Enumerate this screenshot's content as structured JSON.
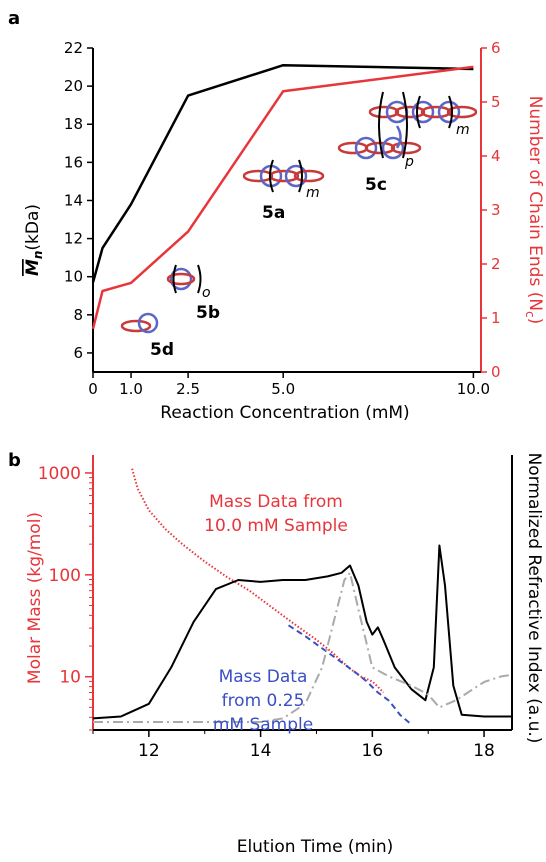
{
  "chart_data": [
    {
      "type": "line",
      "panel_label": "a",
      "xlabel": "Reaction Concentration (mM)",
      "ylabel_left": "M̅n (kDa)",
      "ylabel_left_math": "M",
      "ylabel_left_sub": "n",
      "ylabel_left_unit": "(kDa)",
      "ylabel_right": "Number of Chain Ends (N",
      "ylabel_right_sub": "c",
      "ylabel_right_close": ")",
      "xlim": [
        0,
        10.2
      ],
      "ylim_left": [
        5,
        22
      ],
      "ylim_right": [
        0,
        6
      ],
      "x_ticks": [
        0,
        1.0,
        2.5,
        5.0,
        10.0
      ],
      "x_tick_labels": [
        "0",
        "1.0",
        "2.5",
        "5.0",
        "10.0"
      ],
      "y_left_ticks": [
        6,
        8,
        10,
        12,
        14,
        16,
        18,
        20,
        22
      ],
      "y_right_ticks": [
        0,
        1,
        2,
        3,
        4,
        5,
        6
      ],
      "colors": {
        "left_axis": "#000000",
        "right_axis": "#e8353a",
        "ring_red": "#c8393a",
        "ring_blue": "#5a66c8"
      },
      "series": [
        {
          "axis": "left",
          "color": "#000000",
          "x": [
            0,
            0.25,
            1.0,
            2.5,
            5.0,
            10.0
          ],
          "y": [
            9.7,
            11.5,
            13.8,
            19.5,
            21.1,
            20.9
          ]
        },
        {
          "axis": "right",
          "color": "#e8353a",
          "x": [
            0,
            0.25,
            1.0,
            2.5,
            5.0,
            10.0
          ],
          "y": [
            0.8,
            1.5,
            1.65,
            2.6,
            5.2,
            5.65
          ]
        }
      ],
      "compounds": [
        {
          "label": "5d",
          "subscript": ""
        },
        {
          "label": "5b",
          "subscript": "o"
        },
        {
          "label": "5a",
          "subscript": "m"
        },
        {
          "label": "5c",
          "subscript": "p",
          "subscript2": "m"
        }
      ]
    },
    {
      "type": "line",
      "panel_label": "b",
      "xlabel": "Elution Time (min)",
      "ylabel_left": "Molar Mass (kg/mol)",
      "ylabel_right": "Normalized Refractive Index (a.u.)",
      "xlim": [
        11,
        18.5
      ],
      "ylim_left": [
        3,
        1500
      ],
      "y_scale_left": "log",
      "x_ticks": [
        12,
        14,
        16,
        18
      ],
      "y_left_ticks": [
        10,
        100,
        1000
      ],
      "annotations": [
        {
          "lines": [
            "Mass Data from",
            "10.0 mM Sample"
          ],
          "color": "#e8353a"
        },
        {
          "lines": [
            "Mass Data",
            "from 0.25",
            "mM Sample"
          ],
          "color": "#3b4fc4"
        }
      ],
      "series": [
        {
          "axis": "left",
          "style": "dotted",
          "color": "#e8353a",
          "x": [
            11.7,
            11.8,
            12.0,
            12.3,
            12.6,
            13.0,
            13.4,
            13.8,
            14.2,
            14.6,
            15.0,
            15.3,
            15.6,
            15.8,
            16.0,
            16.2
          ],
          "y": [
            1100,
            700,
            430,
            280,
            200,
            135,
            95,
            70,
            48,
            33,
            23,
            17,
            12,
            10,
            9,
            7
          ]
        },
        {
          "axis": "left",
          "style": "dashed",
          "color": "#3b4fc4",
          "x": [
            14.5,
            14.8,
            15.1,
            15.4,
            15.7,
            15.9,
            16.1,
            16.3,
            16.5,
            16.7
          ],
          "y": [
            32,
            25,
            19,
            14.5,
            11,
            9,
            7,
            5.8,
            4.2,
            3.4
          ]
        },
        {
          "axis": "right",
          "style": "solid",
          "color": "#000000",
          "x": [
            11.0,
            11.5,
            12.0,
            12.4,
            12.8,
            13.2,
            13.6,
            14.0,
            14.4,
            14.8,
            15.2,
            15.45,
            15.6,
            15.75,
            15.9,
            16.0,
            16.1,
            16.2,
            16.4,
            16.7,
            16.95,
            17.1,
            17.2,
            17.3,
            17.45,
            17.6,
            18.0,
            18.5
          ],
          "y": [
            0.02,
            0.03,
            0.1,
            0.3,
            0.55,
            0.73,
            0.78,
            0.77,
            0.78,
            0.78,
            0.8,
            0.82,
            0.86,
            0.75,
            0.55,
            0.48,
            0.52,
            0.45,
            0.3,
            0.18,
            0.12,
            0.3,
            0.97,
            0.75,
            0.2,
            0.04,
            0.03,
            0.03
          ]
        },
        {
          "axis": "right",
          "style": "dashdot",
          "color": "#aaaaaa",
          "x": [
            11.0,
            13.0,
            14.0,
            14.4,
            14.8,
            15.1,
            15.35,
            15.5,
            15.6,
            15.75,
            16.0,
            16.3,
            16.7,
            17.0,
            17.2,
            17.5,
            17.8,
            18.0,
            18.3,
            18.5
          ],
          "y": [
            0.0,
            0.0,
            0.0,
            0.02,
            0.1,
            0.3,
            0.6,
            0.78,
            0.82,
            0.62,
            0.3,
            0.25,
            0.2,
            0.15,
            0.08,
            0.12,
            0.18,
            0.22,
            0.25,
            0.26
          ]
        }
      ]
    }
  ]
}
